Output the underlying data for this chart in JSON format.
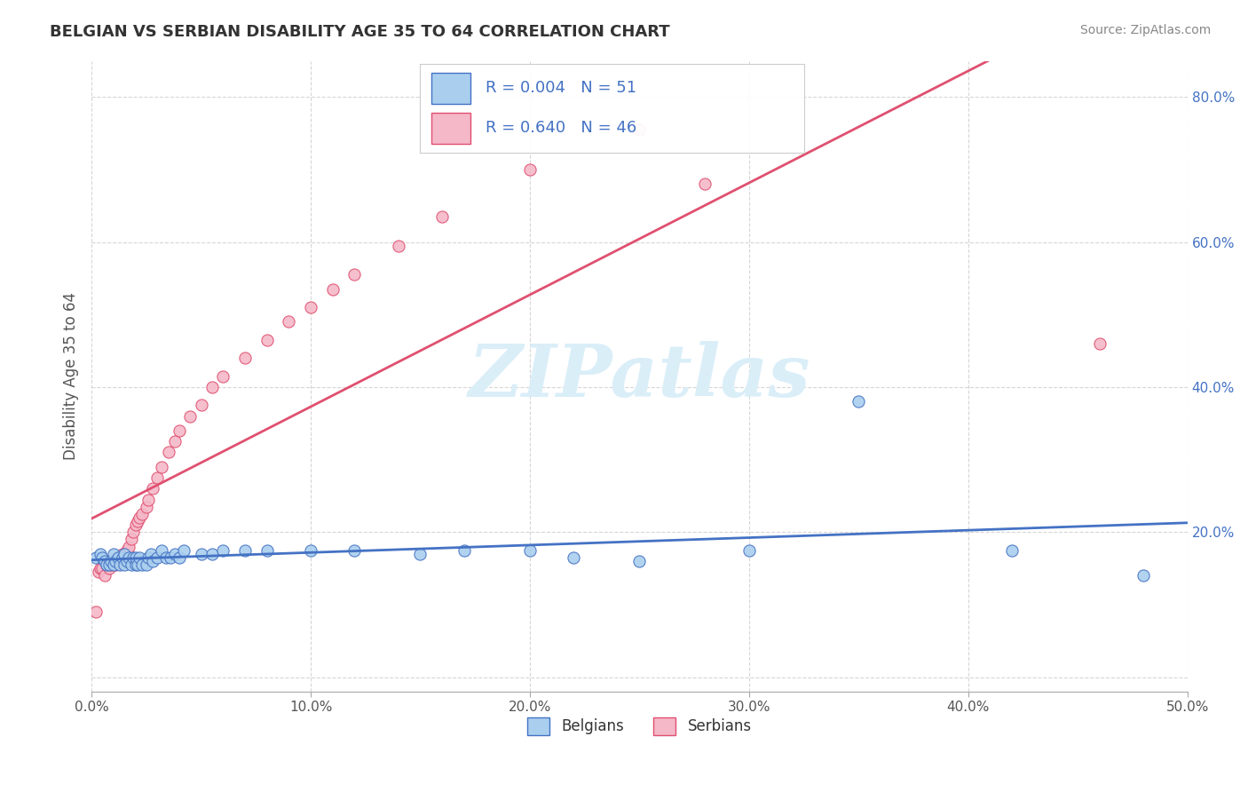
{
  "title": "BELGIAN VS SERBIAN DISABILITY AGE 35 TO 64 CORRELATION CHART",
  "source": "Source: ZipAtlas.com",
  "ylabel": "Disability Age 35 to 64",
  "xlim": [
    0.0,
    0.5
  ],
  "ylim": [
    -0.02,
    0.85
  ],
  "xticks": [
    0.0,
    0.1,
    0.2,
    0.3,
    0.4,
    0.5
  ],
  "xtick_labels": [
    "0.0%",
    "10.0%",
    "20.0%",
    "30.0%",
    "40.0%",
    "50.0%"
  ],
  "yticks": [
    0.0,
    0.2,
    0.4,
    0.6,
    0.8
  ],
  "ytick_labels": [
    "",
    "20.0%",
    "40.0%",
    "60.0%",
    "80.0%"
  ],
  "belgian_R": 0.004,
  "belgian_N": 51,
  "serbian_R": 0.64,
  "serbian_N": 46,
  "belgian_color": "#aacfee",
  "belgian_line_color": "#4472c4",
  "serbian_color": "#f4b8c8",
  "serbian_line_color": "#e05070",
  "watermark_color": "#daeef8",
  "background_color": "#ffffff",
  "grid_color": "#cccccc",
  "belgians_x": [
    0.002,
    0.004,
    0.005,
    0.006,
    0.007,
    0.008,
    0.009,
    0.01,
    0.01,
    0.011,
    0.012,
    0.013,
    0.014,
    0.015,
    0.015,
    0.016,
    0.017,
    0.018,
    0.019,
    0.02,
    0.02,
    0.021,
    0.022,
    0.023,
    0.025,
    0.026,
    0.027,
    0.028,
    0.03,
    0.032,
    0.034,
    0.036,
    0.038,
    0.04,
    0.042,
    0.05,
    0.055,
    0.06,
    0.07,
    0.08,
    0.1,
    0.12,
    0.15,
    0.17,
    0.2,
    0.22,
    0.25,
    0.3,
    0.35,
    0.42,
    0.48
  ],
  "belgians_y": [
    0.165,
    0.17,
    0.165,
    0.16,
    0.155,
    0.155,
    0.16,
    0.155,
    0.17,
    0.16,
    0.165,
    0.155,
    0.165,
    0.155,
    0.17,
    0.16,
    0.165,
    0.155,
    0.165,
    0.155,
    0.165,
    0.155,
    0.165,
    0.155,
    0.155,
    0.165,
    0.17,
    0.16,
    0.165,
    0.175,
    0.165,
    0.165,
    0.17,
    0.165,
    0.175,
    0.17,
    0.17,
    0.175,
    0.175,
    0.175,
    0.175,
    0.175,
    0.17,
    0.175,
    0.175,
    0.165,
    0.16,
    0.175,
    0.38,
    0.175,
    0.14
  ],
  "serbians_x": [
    0.002,
    0.003,
    0.004,
    0.005,
    0.006,
    0.007,
    0.008,
    0.009,
    0.01,
    0.011,
    0.012,
    0.013,
    0.014,
    0.015,
    0.016,
    0.017,
    0.018,
    0.019,
    0.02,
    0.021,
    0.022,
    0.023,
    0.025,
    0.026,
    0.028,
    0.03,
    0.032,
    0.035,
    0.038,
    0.04,
    0.045,
    0.05,
    0.055,
    0.06,
    0.07,
    0.08,
    0.09,
    0.1,
    0.11,
    0.12,
    0.14,
    0.16,
    0.2,
    0.25,
    0.28,
    0.46
  ],
  "serbians_y": [
    0.09,
    0.145,
    0.15,
    0.15,
    0.14,
    0.155,
    0.15,
    0.155,
    0.16,
    0.155,
    0.165,
    0.16,
    0.17,
    0.165,
    0.175,
    0.18,
    0.19,
    0.2,
    0.21,
    0.215,
    0.22,
    0.225,
    0.235,
    0.245,
    0.26,
    0.275,
    0.29,
    0.31,
    0.325,
    0.34,
    0.36,
    0.375,
    0.4,
    0.415,
    0.44,
    0.465,
    0.49,
    0.51,
    0.535,
    0.555,
    0.595,
    0.635,
    0.7,
    0.755,
    0.68,
    0.46
  ]
}
